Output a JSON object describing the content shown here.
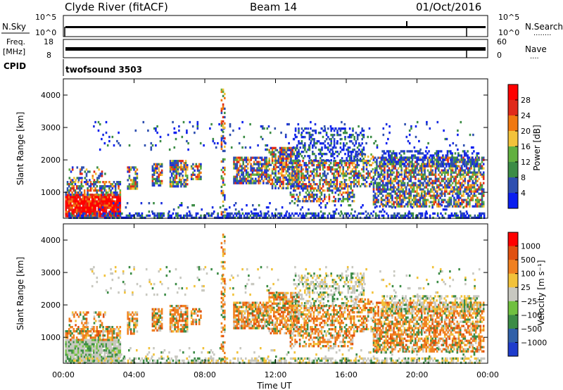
{
  "header": {
    "station": "Clyde River (fitACF)",
    "beam": "Beam 14",
    "date": "01/Oct/2016"
  },
  "sky_panel": {
    "left_label": "N.Sky",
    "right_label": "N.Search",
    "right_dots": "........",
    "left_ticks": [
      "10^5",
      "10^0"
    ],
    "right_ticks": [
      "10^5",
      "10^0"
    ]
  },
  "freq_panel": {
    "left_label_top": "Freq.",
    "left_label_unit": "[MHz]",
    "right_label": "Nave",
    "right_dots": "....",
    "left_ticks": [
      18,
      8
    ],
    "right_ticks": [
      60,
      0
    ]
  },
  "cpid_panel": {
    "label": "CPID",
    "program": "twofsound 3503"
  },
  "chart_data": [
    {
      "type": "heatmap",
      "name": "power",
      "ylabel": "Slant Range [km]",
      "ylim": [
        200,
        4500
      ],
      "yticks": [
        1000,
        2000,
        3000,
        4000
      ],
      "colorbar": {
        "label": "Power [dB]",
        "ticks": [
          4,
          8,
          12,
          16,
          20,
          24,
          28
        ],
        "range": [
          0,
          32
        ],
        "colors": [
          "#0a1ef0",
          "#2e4fb0",
          "#3c8c46",
          "#62b040",
          "#f2c23a",
          "#f07810",
          "#e02a1a",
          "#ff0000"
        ]
      }
    },
    {
      "type": "heatmap",
      "name": "velocity",
      "ylabel": "Slant Range [km]",
      "xlabel": "Time UT",
      "ylim": [
        200,
        4500
      ],
      "yticks": [
        1000,
        2000,
        3000,
        4000
      ],
      "xlim": [
        0,
        24
      ],
      "xticks": [
        "00:00",
        "04:00",
        "08:00",
        "12:00",
        "16:00",
        "20:00",
        "00:00"
      ],
      "colorbar": {
        "label": "Velocity [m s⁻¹]",
        "ticks": [
          "1000",
          "500",
          "100",
          "25",
          "−25",
          "−100",
          "−500",
          "−1000"
        ],
        "colors": [
          "#1e3ccc",
          "#3060a8",
          "#3c8c46",
          "#70c040",
          "#c8c8c0",
          "#f2c23a",
          "#f08020",
          "#e05010",
          "#ff0000"
        ]
      }
    }
  ]
}
